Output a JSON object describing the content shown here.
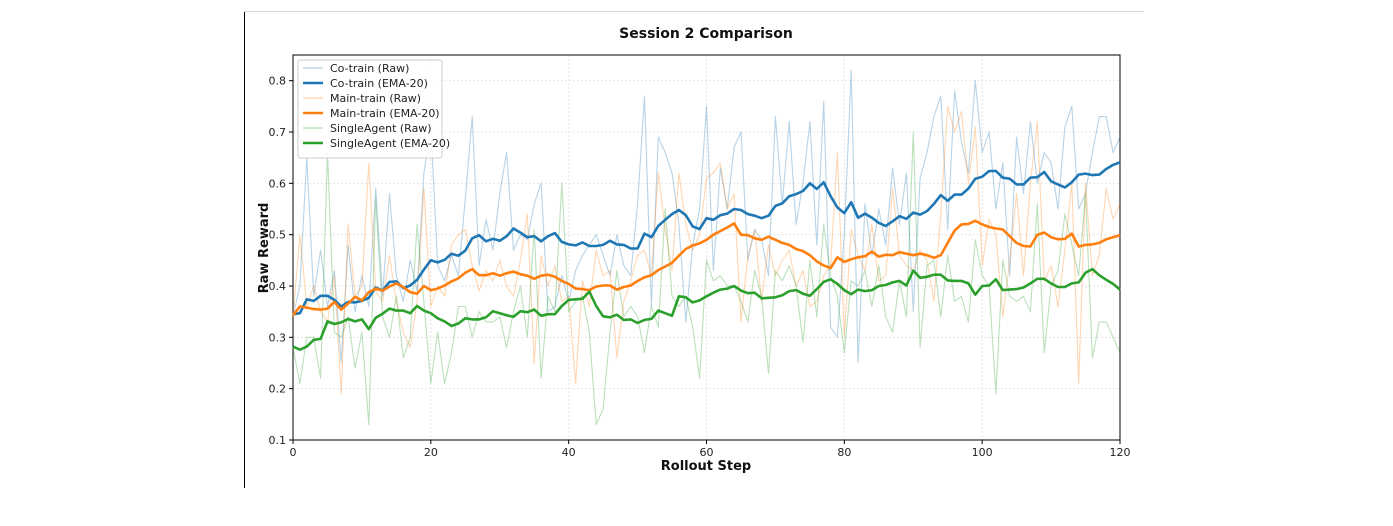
{
  "chart_data": {
    "type": "line",
    "title": "Session 2 Comparison",
    "xlabel": "Rollout Step",
    "ylabel": "Raw Reward",
    "xlim": [
      0,
      120
    ],
    "ylim": [
      0.1,
      0.85
    ],
    "x_ticks": [
      "0",
      "20",
      "40",
      "60",
      "80",
      "100",
      "120"
    ],
    "y_ticks": [
      "0.1",
      "0.2",
      "0.3",
      "0.4",
      "0.5",
      "0.6",
      "0.7",
      "0.8"
    ],
    "grid": true,
    "legend_position": "top-left",
    "series": [
      {
        "name": "Co-train (Raw)",
        "color": "#1f77b4",
        "style": "raw",
        "values": [
          0.34,
          0.4,
          0.65,
          0.38,
          0.47,
          0.36,
          0.43,
          0.25,
          0.48,
          0.35,
          0.42,
          0.36,
          0.59,
          0.38,
          0.58,
          0.42,
          0.37,
          0.45,
          0.39,
          0.62,
          0.71,
          0.44,
          0.41,
          0.46,
          0.42,
          0.57,
          0.73,
          0.44,
          0.53,
          0.47,
          0.58,
          0.66,
          0.47,
          0.5,
          0.49,
          0.56,
          0.6,
          0.35,
          0.36,
          0.42,
          0.37,
          0.43,
          0.46,
          0.48,
          0.5,
          0.46,
          0.42,
          0.5,
          0.44,
          0.42,
          0.56,
          0.77,
          0.36,
          0.69,
          0.66,
          0.62,
          0.52,
          0.33,
          0.48,
          0.55,
          0.75,
          0.43,
          0.63,
          0.55,
          0.67,
          0.7,
          0.45,
          0.51,
          0.49,
          0.42,
          0.73,
          0.56,
          0.72,
          0.52,
          0.6,
          0.72,
          0.48,
          0.76,
          0.32,
          0.3,
          0.5,
          0.82,
          0.25,
          0.56,
          0.46,
          0.55,
          0.48,
          0.63,
          0.52,
          0.62,
          0.35,
          0.61,
          0.66,
          0.73,
          0.77,
          0.51,
          0.78,
          0.68,
          0.62,
          0.8,
          0.66,
          0.7,
          0.55,
          0.64,
          0.42,
          0.69,
          0.58,
          0.72,
          0.6,
          0.66,
          0.64,
          0.55,
          0.71,
          0.75,
          0.55,
          0.58,
          0.66,
          0.73,
          0.73,
          0.66,
          0.69
        ]
      },
      {
        "name": "Co-train (EMA-20)",
        "color": "#1f77b4",
        "style": "ema",
        "values": [
          0.345,
          0.347,
          0.374,
          0.371,
          0.381,
          0.381,
          0.373,
          0.36,
          0.369,
          0.368,
          0.371,
          0.377,
          0.397,
          0.391,
          0.408,
          0.409,
          0.396,
          0.401,
          0.412,
          0.432,
          0.45,
          0.446,
          0.451,
          0.463,
          0.459,
          0.469,
          0.493,
          0.499,
          0.487,
          0.492,
          0.488,
          0.497,
          0.512,
          0.504,
          0.495,
          0.497,
          0.487,
          0.497,
          0.503,
          0.486,
          0.481,
          0.479,
          0.485,
          0.478,
          0.478,
          0.48,
          0.488,
          0.481,
          0.48,
          0.473,
          0.473,
          0.502,
          0.495,
          0.517,
          0.529,
          0.54,
          0.548,
          0.538,
          0.516,
          0.511,
          0.532,
          0.529,
          0.538,
          0.541,
          0.55,
          0.548,
          0.54,
          0.537,
          0.532,
          0.537,
          0.556,
          0.561,
          0.575,
          0.579,
          0.585,
          0.6,
          0.589,
          0.602,
          0.575,
          0.553,
          0.542,
          0.563,
          0.533,
          0.541,
          0.533,
          0.523,
          0.517,
          0.526,
          0.536,
          0.531,
          0.543,
          0.539,
          0.546,
          0.56,
          0.577,
          0.566,
          0.578,
          0.578,
          0.59,
          0.609,
          0.613,
          0.624,
          0.624,
          0.611,
          0.609,
          0.598,
          0.598,
          0.611,
          0.612,
          0.622,
          0.604,
          0.598,
          0.592,
          0.602,
          0.617,
          0.619,
          0.616,
          0.617,
          0.628,
          0.636,
          0.641
        ]
      },
      {
        "name": "Main-train (Raw)",
        "color": "#ff7f0e",
        "style": "raw",
        "values": [
          0.34,
          0.5,
          0.36,
          0.4,
          0.35,
          0.33,
          0.42,
          0.19,
          0.52,
          0.38,
          0.4,
          0.64,
          0.39,
          0.37,
          0.46,
          0.37,
          0.31,
          0.28,
          0.37,
          0.59,
          0.36,
          0.4,
          0.38,
          0.48,
          0.5,
          0.51,
          0.44,
          0.39,
          0.43,
          0.41,
          0.45,
          0.4,
          0.38,
          0.45,
          0.54,
          0.25,
          0.46,
          0.4,
          0.44,
          0.37,
          0.38,
          0.21,
          0.41,
          0.36,
          0.47,
          0.42,
          0.43,
          0.26,
          0.37,
          0.41,
          0.46,
          0.47,
          0.42,
          0.62,
          0.51,
          0.43,
          0.62,
          0.52,
          0.47,
          0.5,
          0.61,
          0.62,
          0.64,
          0.55,
          0.58,
          0.33,
          0.46,
          0.51,
          0.37,
          0.48,
          0.42,
          0.45,
          0.47,
          0.4,
          0.43,
          0.36,
          0.37,
          0.42,
          0.44,
          0.66,
          0.3,
          0.51,
          0.46,
          0.43,
          0.52,
          0.41,
          0.42,
          0.59,
          0.46,
          0.44,
          0.43,
          0.47,
          0.45,
          0.37,
          0.54,
          0.75,
          0.7,
          0.74,
          0.6,
          0.71,
          0.44,
          0.53,
          0.5,
          0.34,
          0.45,
          0.58,
          0.42,
          0.6,
          0.72,
          0.41,
          0.44,
          0.36,
          0.47,
          0.6,
          0.21,
          0.6,
          0.42,
          0.46,
          0.59,
          0.53,
          0.56
        ]
      },
      {
        "name": "Main-train (EMA-20)",
        "color": "#ff7f0e",
        "style": "ema",
        "values": [
          0.343,
          0.36,
          0.358,
          0.355,
          0.354,
          0.356,
          0.369,
          0.354,
          0.366,
          0.379,
          0.372,
          0.388,
          0.395,
          0.391,
          0.399,
          0.405,
          0.398,
          0.388,
          0.385,
          0.4,
          0.392,
          0.395,
          0.401,
          0.409,
          0.415,
          0.426,
          0.433,
          0.421,
          0.421,
          0.425,
          0.42,
          0.425,
          0.428,
          0.423,
          0.42,
          0.414,
          0.42,
          0.422,
          0.418,
          0.41,
          0.404,
          0.395,
          0.394,
          0.392,
          0.399,
          0.401,
          0.401,
          0.393,
          0.398,
          0.401,
          0.41,
          0.417,
          0.421,
          0.431,
          0.438,
          0.445,
          0.459,
          0.472,
          0.479,
          0.483,
          0.49,
          0.5,
          0.507,
          0.514,
          0.522,
          0.5,
          0.499,
          0.493,
          0.49,
          0.496,
          0.49,
          0.484,
          0.48,
          0.472,
          0.468,
          0.46,
          0.448,
          0.44,
          0.435,
          0.456,
          0.447,
          0.452,
          0.456,
          0.458,
          0.467,
          0.457,
          0.461,
          0.46,
          0.466,
          0.463,
          0.46,
          0.463,
          0.46,
          0.455,
          0.46,
          0.484,
          0.508,
          0.52,
          0.521,
          0.527,
          0.52,
          0.515,
          0.512,
          0.51,
          0.497,
          0.484,
          0.478,
          0.477,
          0.5,
          0.504,
          0.495,
          0.491,
          0.492,
          0.502,
          0.477,
          0.48,
          0.481,
          0.484,
          0.491,
          0.495,
          0.499
        ]
      },
      {
        "name": "SingleAgent (Raw)",
        "color": "#2ca02c",
        "style": "raw",
        "values": [
          0.28,
          0.21,
          0.3,
          0.3,
          0.22,
          0.66,
          0.31,
          0.3,
          0.34,
          0.24,
          0.31,
          0.13,
          0.57,
          0.34,
          0.3,
          0.38,
          0.26,
          0.3,
          0.52,
          0.37,
          0.21,
          0.31,
          0.21,
          0.27,
          0.36,
          0.36,
          0.3,
          0.35,
          0.33,
          0.33,
          0.34,
          0.28,
          0.35,
          0.4,
          0.3,
          0.51,
          0.22,
          0.38,
          0.35,
          0.6,
          0.35,
          0.37,
          0.38,
          0.31,
          0.13,
          0.16,
          0.31,
          0.43,
          0.34,
          0.36,
          0.34,
          0.27,
          0.36,
          0.32,
          0.55,
          0.38,
          0.36,
          0.38,
          0.32,
          0.22,
          0.45,
          0.41,
          0.42,
          0.4,
          0.4,
          0.37,
          0.33,
          0.43,
          0.38,
          0.23,
          0.43,
          0.41,
          0.44,
          0.4,
          0.29,
          0.45,
          0.34,
          0.52,
          0.42,
          0.38,
          0.27,
          0.41,
          0.4,
          0.43,
          0.36,
          0.44,
          0.34,
          0.31,
          0.41,
          0.34,
          0.7,
          0.28,
          0.44,
          0.45,
          0.34,
          0.46,
          0.37,
          0.38,
          0.33,
          0.49,
          0.42,
          0.4,
          0.19,
          0.45,
          0.38,
          0.37,
          0.38,
          0.35,
          0.56,
          0.27,
          0.4,
          0.43,
          0.54,
          0.48,
          0.42,
          0.58,
          0.26,
          0.33,
          0.33,
          0.3,
          0.27
        ]
      },
      {
        "name": "SingleAgent (EMA-20)",
        "color": "#2ca02c",
        "style": "ema",
        "values": [
          0.282,
          0.276,
          0.282,
          0.295,
          0.297,
          0.331,
          0.326,
          0.329,
          0.336,
          0.331,
          0.335,
          0.316,
          0.338,
          0.346,
          0.356,
          0.352,
          0.352,
          0.347,
          0.361,
          0.352,
          0.347,
          0.337,
          0.331,
          0.322,
          0.327,
          0.337,
          0.335,
          0.335,
          0.339,
          0.351,
          0.347,
          0.343,
          0.34,
          0.351,
          0.349,
          0.354,
          0.342,
          0.345,
          0.345,
          0.361,
          0.373,
          0.374,
          0.375,
          0.389,
          0.361,
          0.341,
          0.339,
          0.344,
          0.334,
          0.335,
          0.328,
          0.334,
          0.336,
          0.352,
          0.347,
          0.342,
          0.38,
          0.378,
          0.368,
          0.372,
          0.38,
          0.387,
          0.393,
          0.395,
          0.4,
          0.391,
          0.386,
          0.387,
          0.376,
          0.377,
          0.378,
          0.382,
          0.39,
          0.392,
          0.385,
          0.381,
          0.394,
          0.408,
          0.413,
          0.404,
          0.392,
          0.384,
          0.393,
          0.39,
          0.392,
          0.4,
          0.402,
          0.407,
          0.41,
          0.401,
          0.43,
          0.416,
          0.418,
          0.422,
          0.422,
          0.411,
          0.41,
          0.41,
          0.405,
          0.383,
          0.4,
          0.401,
          0.413,
          0.392,
          0.393,
          0.394,
          0.397,
          0.405,
          0.414,
          0.414,
          0.405,
          0.398,
          0.398,
          0.405,
          0.407,
          0.426,
          0.433,
          0.421,
          0.412,
          0.404,
          0.393
        ]
      }
    ]
  }
}
